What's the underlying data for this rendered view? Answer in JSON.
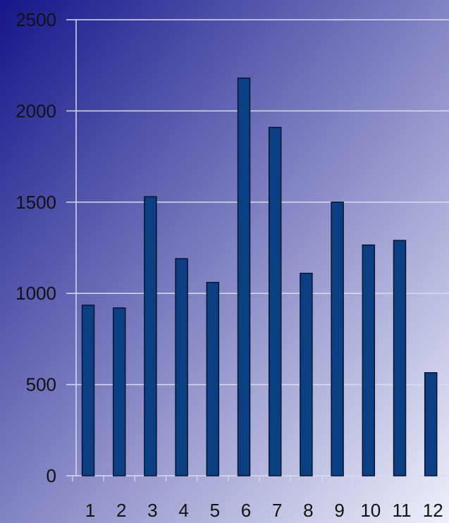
{
  "chart_data": {
    "type": "bar",
    "categories": [
      "1",
      "2",
      "3",
      "4",
      "5",
      "6",
      "7",
      "8",
      "9",
      "10",
      "11",
      "12"
    ],
    "values": [
      935,
      920,
      1530,
      1190,
      1060,
      2180,
      1910,
      1110,
      1500,
      1265,
      1290,
      565
    ],
    "title": "",
    "xlabel": "",
    "ylabel": "",
    "ylim": [
      0,
      2500
    ],
    "yticks": [
      "0",
      "500",
      "1000",
      "1500",
      "2000",
      "2500"
    ],
    "grid": true,
    "legend": "none",
    "colors": {
      "bar_fill": "#0b3f82",
      "bar_stroke": "#021633",
      "gradient_top_left": "#15168a",
      "gradient_bottom_right": "#eef0fb",
      "gridline": "#d8dcf0"
    }
  }
}
